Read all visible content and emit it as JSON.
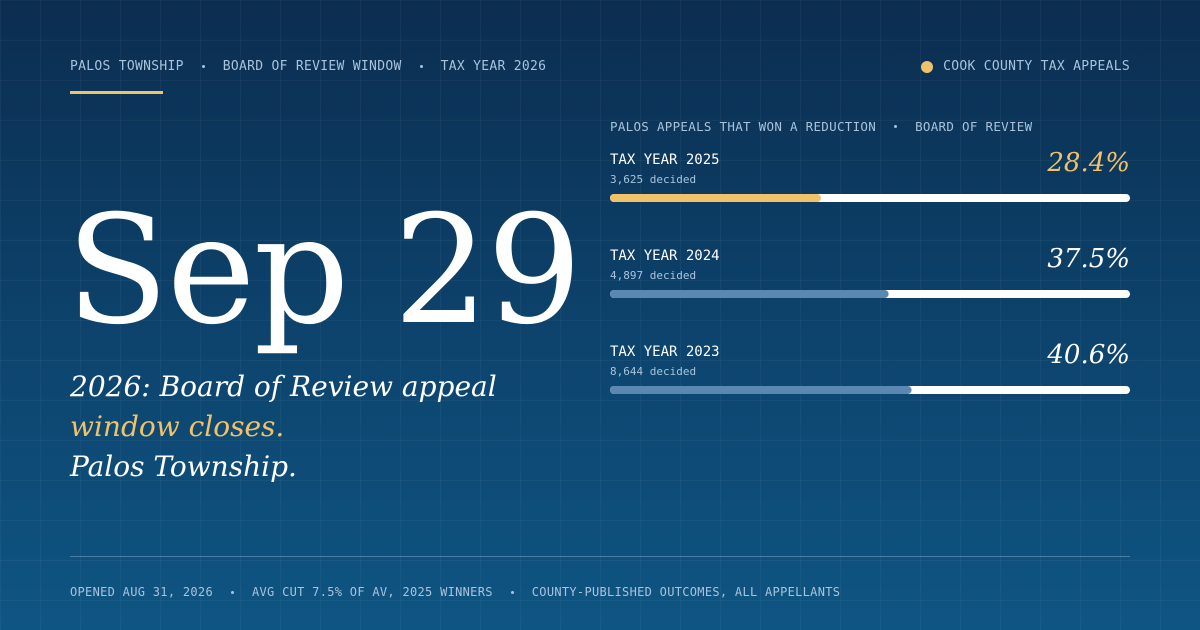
{
  "header": {
    "items": [
      "PALOS TOWNSHIP",
      "BOARD OF REVIEW WINDOW",
      "TAX YEAR 2026"
    ],
    "badge": "COOK COUNTY TAX APPEALS"
  },
  "hero": {
    "date": "Sep 29",
    "line1": "2026: Board of Review appeal",
    "line2": "window closes.",
    "line3": "Palos Township."
  },
  "chart_data": {
    "type": "bar",
    "orientation": "horizontal",
    "title": "PALOS APPEALS THAT WON A REDUCTION",
    "subtitle": "BOARD OF REVIEW",
    "categories": [
      "TAX YEAR 2025",
      "TAX YEAR 2024",
      "TAX YEAR 2023"
    ],
    "notes": [
      "3,625 decided",
      "4,897 decided",
      "8,644 decided"
    ],
    "values": [
      28.4,
      37.5,
      40.6
    ],
    "value_labels": [
      "28.4%",
      "37.5%",
      "40.6%"
    ],
    "colors": [
      "#f0c36b",
      "#5b88b3",
      "#5b88b3"
    ],
    "label_colors": [
      "#f0c36b",
      "#ffffff",
      "#ffffff"
    ],
    "xlim": [
      0,
      70
    ]
  },
  "footer": {
    "items": [
      "OPENED AUG 31, 2026",
      "AVG CUT 7.5% OF AV, 2025 WINNERS",
      "COUNTY-PUBLISHED OUTCOMES, ALL APPELLANTS"
    ]
  }
}
